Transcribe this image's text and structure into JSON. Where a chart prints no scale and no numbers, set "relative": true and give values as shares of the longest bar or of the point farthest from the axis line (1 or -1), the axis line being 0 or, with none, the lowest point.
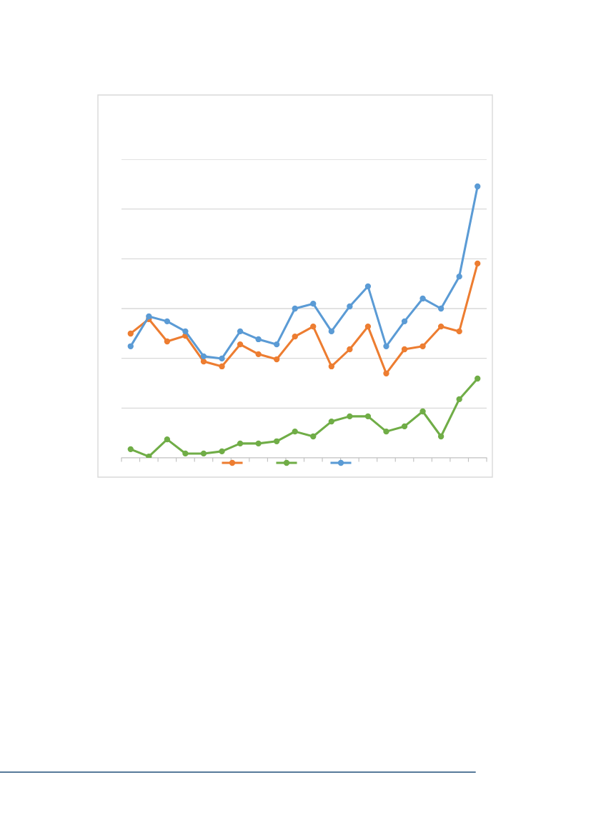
{
  "chart_data": {
    "type": "line",
    "relative": true,
    "categories": [
      null,
      null,
      null,
      null,
      null,
      null,
      null,
      null,
      null,
      null,
      null,
      null,
      null,
      null,
      null,
      null,
      null,
      null,
      null,
      null
    ],
    "series": [
      {
        "color": "#ed7d31",
        "values": [
          0.458,
          0.511,
          0.429,
          0.45,
          0.355,
          0.337,
          0.418,
          0.382,
          0.363,
          0.447,
          0.484,
          0.337,
          0.4,
          0.484,
          0.311,
          0.4,
          0.411,
          0.484,
          0.466,
          0.716
        ]
      },
      {
        "color": "#70ad47",
        "values": [
          0.032,
          0.005,
          0.068,
          0.016,
          0.016,
          0.024,
          0.053,
          0.053,
          0.061,
          0.097,
          0.079,
          0.134,
          0.153,
          0.153,
          0.097,
          0.116,
          0.171,
          0.079,
          0.216,
          0.292
        ]
      },
      {
        "color": "#5b9bd5",
        "values": [
          0.411,
          0.521,
          0.503,
          0.466,
          0.374,
          0.366,
          0.466,
          0.437,
          0.418,
          0.55,
          0.568,
          0.466,
          0.558,
          0.632,
          0.411,
          0.503,
          0.587,
          0.55,
          0.668,
          1
        ]
      }
    ],
    "grid": "y",
    "marker": "circle",
    "line_style": "solid"
  }
}
